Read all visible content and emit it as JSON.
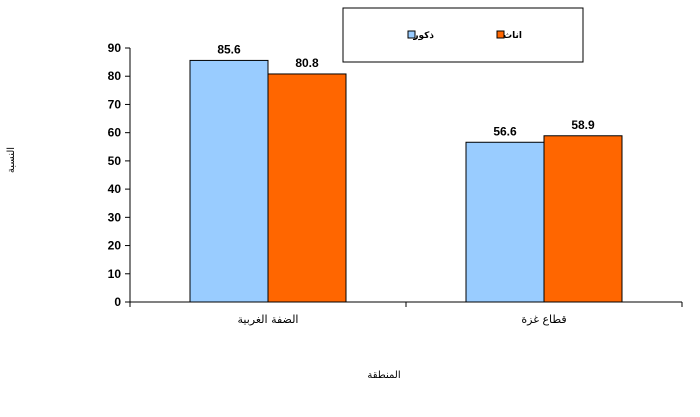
{
  "chart_data": {
    "type": "bar",
    "categories": [
      "الضفة الغربية",
      "قطاع غزة"
    ],
    "series": [
      {
        "name": "ذكور",
        "values": [
          85.6,
          56.6
        ],
        "color": "#99ccff"
      },
      {
        "name": "اناث",
        "values": [
          80.8,
          58.9
        ],
        "color": "#ff6600"
      }
    ],
    "data_labels": [
      [
        "85.6",
        "56.6"
      ],
      [
        "80.8",
        "58.9"
      ]
    ],
    "ylim": [
      0,
      90
    ],
    "yticks": [
      0,
      10,
      20,
      30,
      40,
      50,
      60,
      70,
      80,
      90
    ],
    "xlabel": "المنطقة",
    "ylabel": "النسبة",
    "grid": false,
    "legend_position": "top-right"
  }
}
